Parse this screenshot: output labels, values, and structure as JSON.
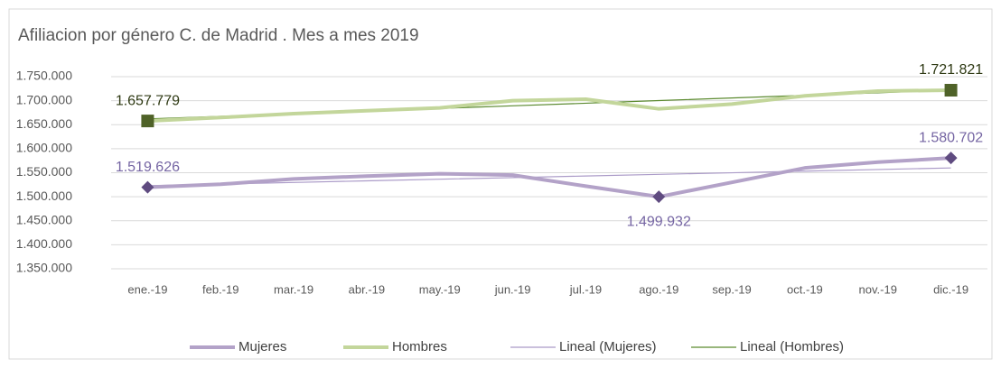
{
  "chart_data": {
    "type": "line",
    "title": "Afiliacion por género C. de Madrid . Mes a mes 2019",
    "categories": [
      "ene.-19",
      "feb.-19",
      "mar.-19",
      "abr.-19",
      "may.-19",
      "jun.-19",
      "jul.-19",
      "ago.-19",
      "sep.-19",
      "oct.-19",
      "nov.-19",
      "dic.-19"
    ],
    "series": [
      {
        "name": "Mujeres",
        "color": "#b3a2c8",
        "marker_color": "#5f4b80",
        "label_color": "#7565a3",
        "marker": "diamond",
        "width": 4,
        "values": [
          1519626,
          1526000,
          1537000,
          1543000,
          1548000,
          1545000,
          1522000,
          1499932,
          1530000,
          1560000,
          1572000,
          1580702
        ],
        "value_labels": [
          "1.519.626",
          null,
          null,
          null,
          null,
          null,
          null,
          "1.499.932",
          null,
          null,
          null,
          "1.580.702"
        ]
      },
      {
        "name": "Hombres",
        "color": "#c3d69b",
        "marker_color": "#4f6228",
        "label_color": "#2f3a14",
        "marker": "square",
        "width": 4,
        "values": [
          1657779,
          1665000,
          1673000,
          1679000,
          1685000,
          1700000,
          1703000,
          1683000,
          1693000,
          1710000,
          1720000,
          1721821
        ],
        "value_labels": [
          "1.657.779",
          null,
          null,
          null,
          null,
          null,
          null,
          null,
          null,
          null,
          null,
          "1.721.821"
        ]
      },
      {
        "name": "Lineal (Mujeres)",
        "color": "#ab9bc8",
        "width": 1.2,
        "values": [
          1523000,
          1526400,
          1529700,
          1533100,
          1536500,
          1539800,
          1543200,
          1546600,
          1549900,
          1553300,
          1556700,
          1560000
        ]
      },
      {
        "name": "Lineal (Hombres)",
        "color": "#5b8a2f",
        "width": 1.2,
        "values": [
          1662000,
          1667500,
          1672900,
          1678400,
          1683800,
          1689300,
          1694700,
          1700200,
          1705600,
          1711100,
          1716500,
          1722000
        ]
      }
    ],
    "ylim": [
      1350000,
      1750000
    ],
    "yticks": [
      {
        "value": 1350000,
        "label": "1.350.000"
      },
      {
        "value": 1400000,
        "label": "1.400.000"
      },
      {
        "value": 1450000,
        "label": "1.450.000"
      },
      {
        "value": 1500000,
        "label": "1.500.000"
      },
      {
        "value": 1550000,
        "label": "1.550.000"
      },
      {
        "value": 1600000,
        "label": "1.600.000"
      },
      {
        "value": 1650000,
        "label": "1.650.000"
      },
      {
        "value": 1700000,
        "label": "1.700.000"
      },
      {
        "value": 1750000,
        "label": "1.750.000"
      }
    ],
    "grid": true,
    "legend": "bottom"
  }
}
